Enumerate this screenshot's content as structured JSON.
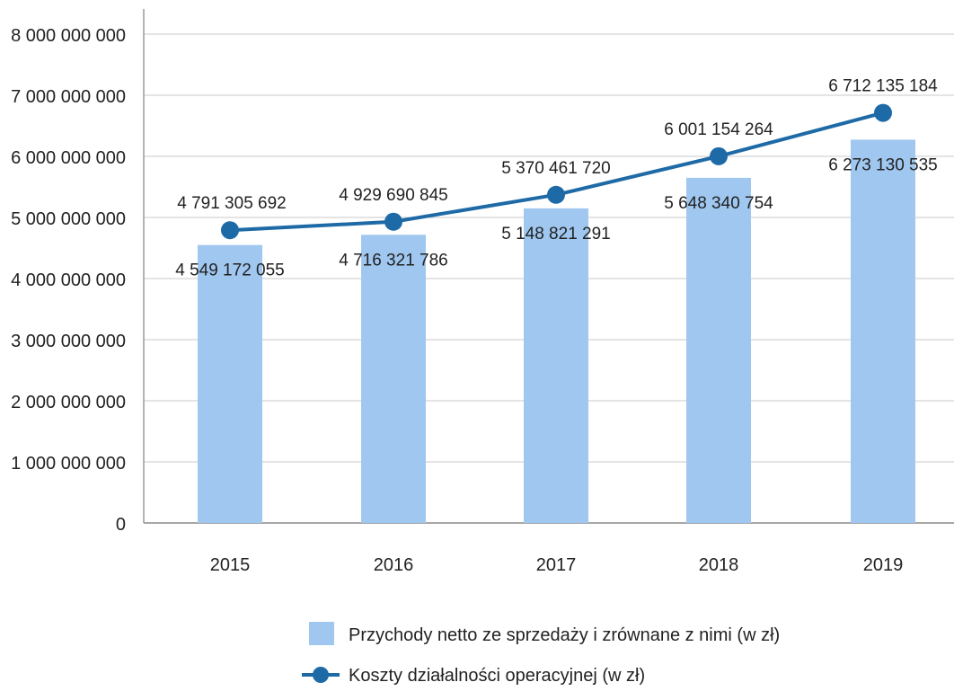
{
  "chart_data": {
    "type": "bar",
    "categories": [
      "2015",
      "2016",
      "2017",
      "2018",
      "2019"
    ],
    "series": [
      {
        "name": "Przychody netto ze sprzedaży i zrównane z nimi (w zł)",
        "type": "bar",
        "values": [
          4549172055,
          4716321786,
          5148821291,
          5648340754,
          6273130535
        ],
        "labels": [
          "4 549 172 055",
          "4 716 321 786",
          "5 148 821 291",
          "5 648 340 754",
          "6 273 130 535"
        ],
        "color": "#9fc7ef"
      },
      {
        "name": "Koszty działalności operacyjnej (w zł)",
        "type": "line",
        "values": [
          4791305692,
          4929690845,
          5370461720,
          6001154264,
          6712135184
        ],
        "labels": [
          "4 791 305 692",
          "4 929 690 845",
          "5 370 461 720",
          "6 001 154 264",
          "6 712 135 184"
        ],
        "color": "#1e6aa6"
      }
    ],
    "ylim": [
      0,
      8000000000
    ],
    "yticks": [
      0,
      1000000000,
      2000000000,
      3000000000,
      4000000000,
      5000000000,
      6000000000,
      7000000000,
      8000000000
    ],
    "ytick_labels": [
      "0",
      "1 000 000 000",
      "2 000 000 000",
      "3 000 000 000",
      "4 000 000 000",
      "5 000 000 000",
      "6 000 000 000",
      "7 000 000 000",
      "8 000 000 000"
    ],
    "grid": true,
    "legend_position": "bottom-center"
  }
}
